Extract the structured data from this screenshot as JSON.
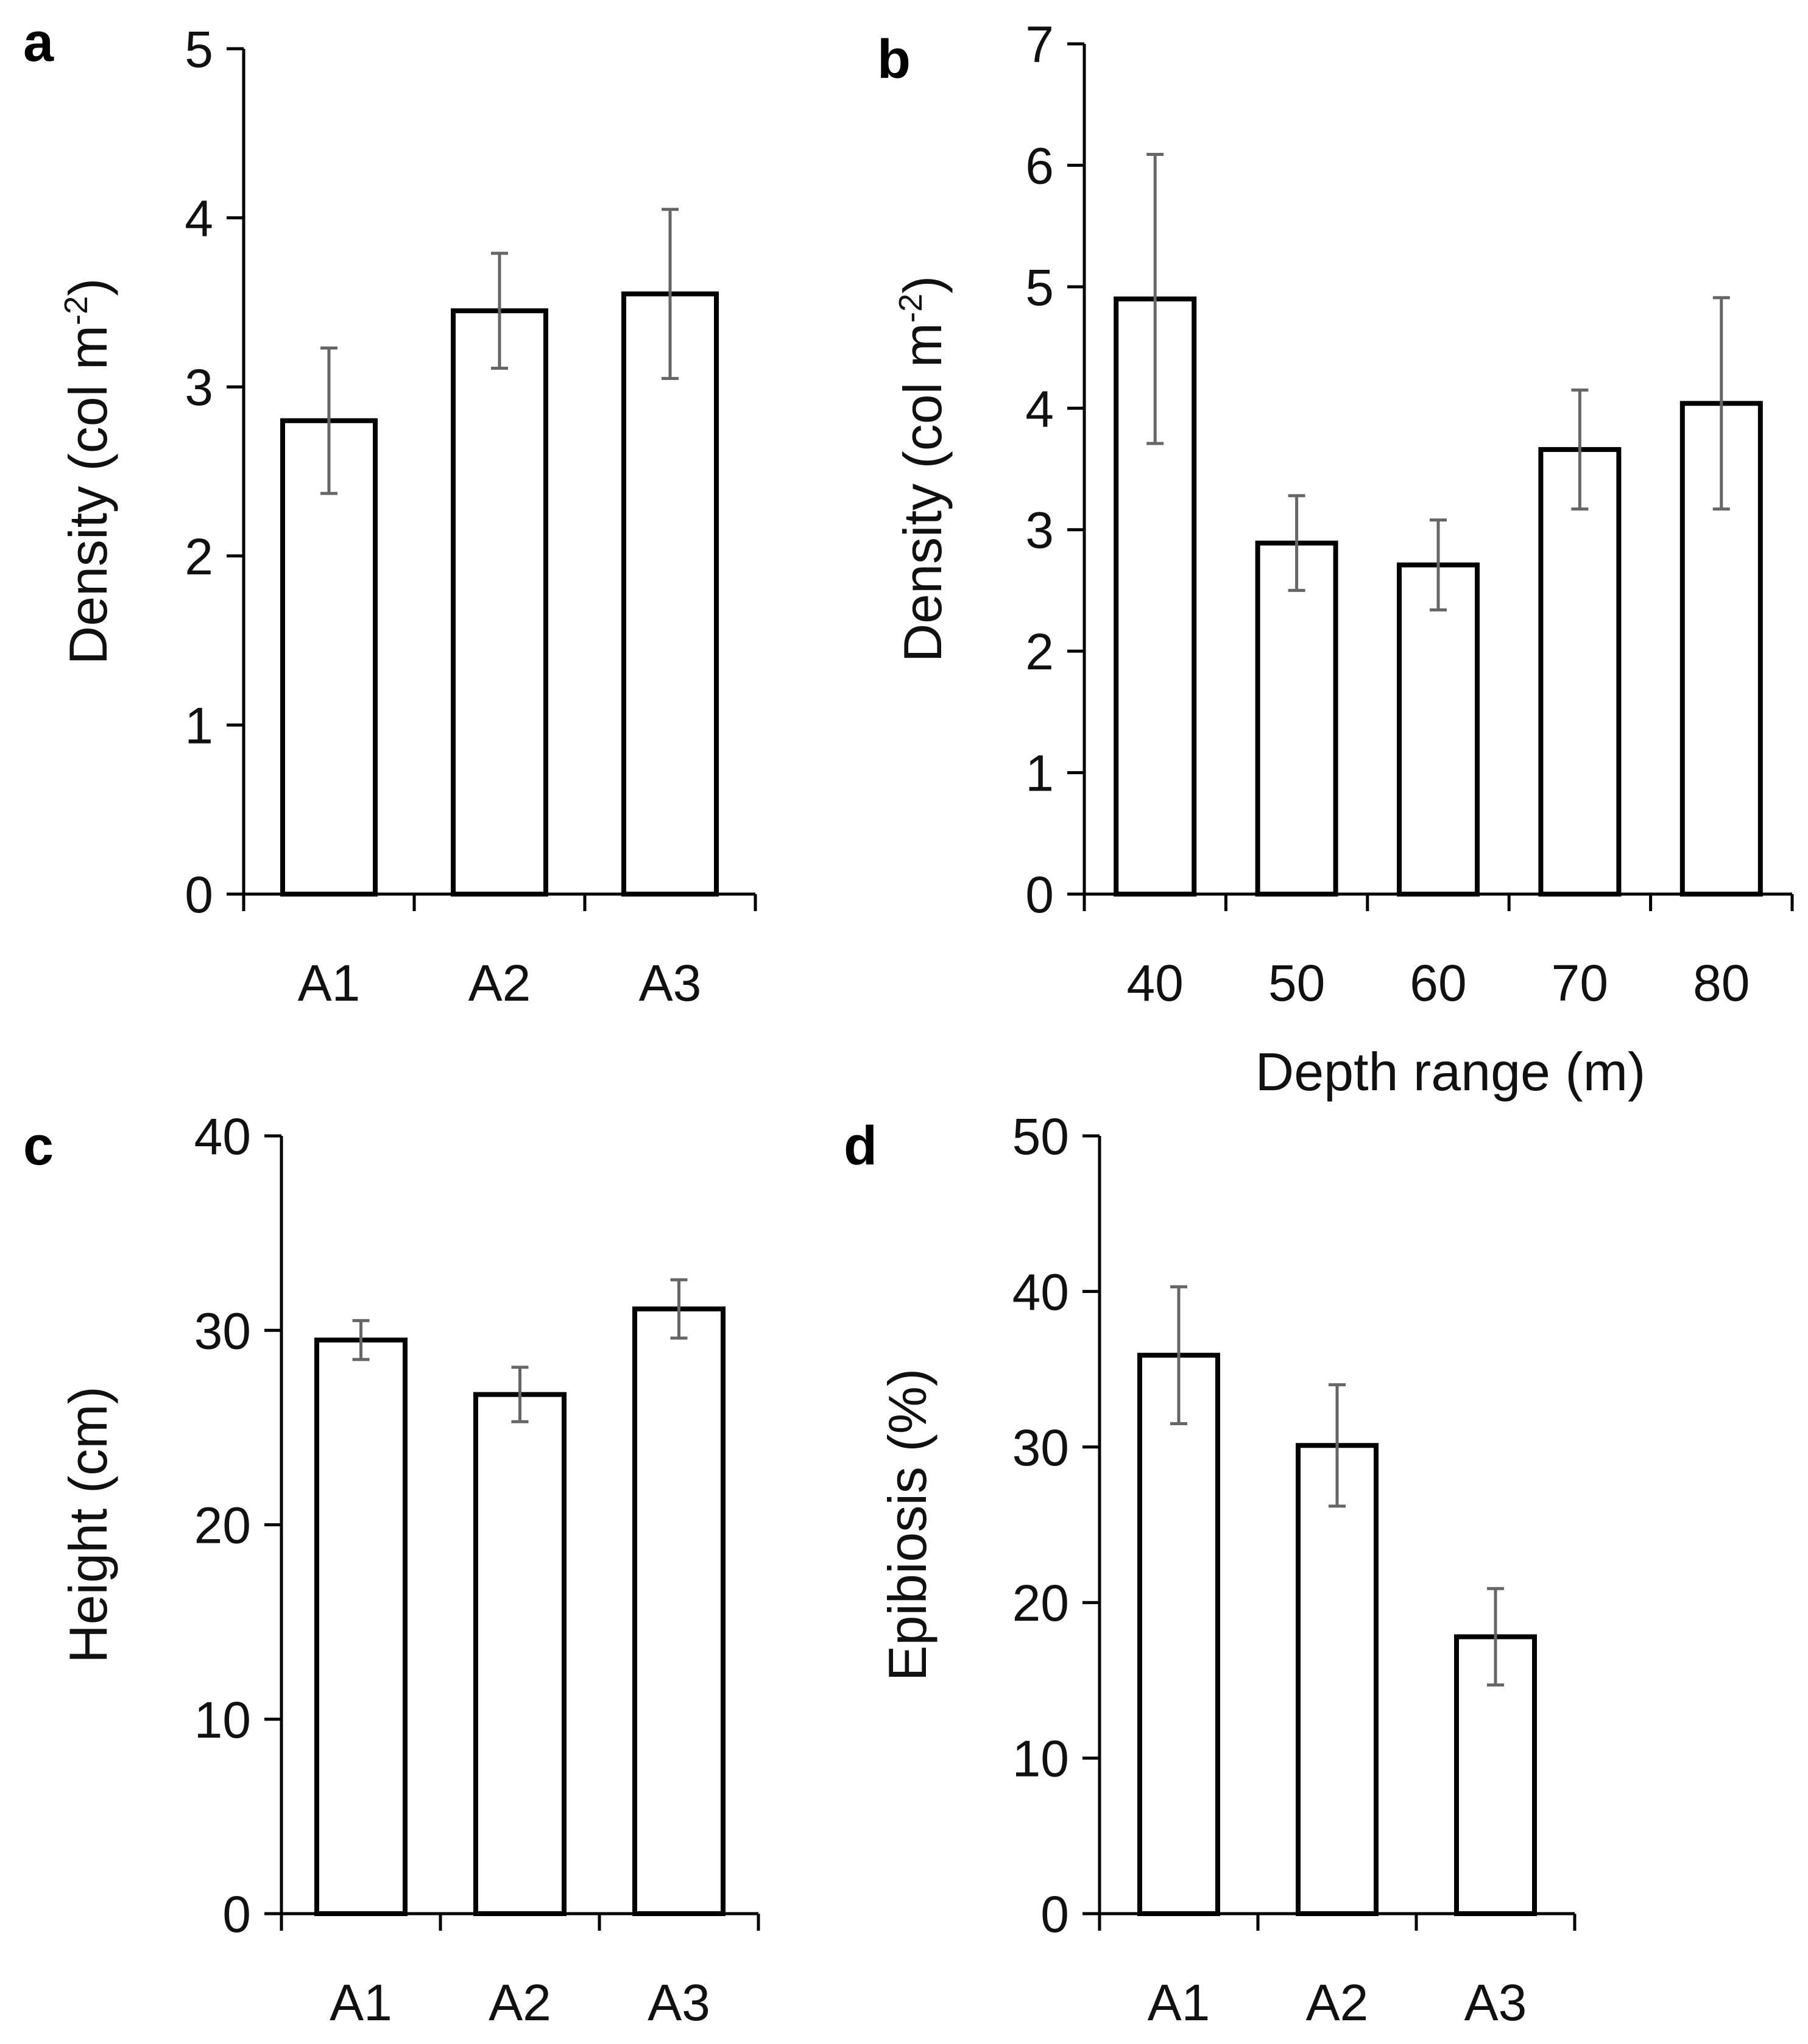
{
  "chart_data": [
    {
      "id": "a",
      "letter": "a",
      "type": "bar",
      "categories": [
        "A1",
        "A2",
        "A3"
      ],
      "values": [
        2.8,
        3.45,
        3.55
      ],
      "errors": [
        0.43,
        0.34,
        0.5
      ],
      "ylim": [
        0,
        5
      ],
      "yticks": [
        0,
        1,
        2,
        3,
        4,
        5
      ],
      "ylabel": "Density (col m",
      "ylabel_sup": "-2",
      "ylabel_end": ")",
      "xlabel": ""
    },
    {
      "id": "b",
      "letter": "b",
      "type": "bar",
      "categories": [
        "40",
        "50",
        "60",
        "70",
        "80"
      ],
      "values": [
        4.9,
        2.89,
        2.71,
        3.66,
        4.04
      ],
      "errors": [
        1.19,
        0.39,
        0.37,
        0.49,
        0.87
      ],
      "ylim": [
        0,
        7
      ],
      "yticks": [
        0,
        1,
        2,
        3,
        4,
        5,
        6,
        7
      ],
      "ylabel": "Density (col m",
      "ylabel_sup": "-2",
      "ylabel_end": ")",
      "xlabel": "Depth range (m)"
    },
    {
      "id": "c",
      "letter": "c",
      "type": "bar",
      "categories": [
        "A1",
        "A2",
        "A3"
      ],
      "values": [
        29.5,
        26.7,
        31.1
      ],
      "errors": [
        1.0,
        1.4,
        1.5
      ],
      "ylim": [
        0,
        40
      ],
      "yticks": [
        0,
        10,
        20,
        30,
        40
      ],
      "ylabel": "Height (cm)",
      "ylabel_sup": "",
      "ylabel_end": "",
      "xlabel": ""
    },
    {
      "id": "d",
      "letter": "d",
      "type": "bar",
      "categories": [
        "A1",
        "A2",
        "A3"
      ],
      "values": [
        35.9,
        30.1,
        17.8
      ],
      "errors": [
        4.4,
        3.9,
        3.1
      ],
      "ylim": [
        0,
        50
      ],
      "yticks": [
        0,
        10,
        20,
        30,
        40,
        50
      ],
      "ylabel": "Epibiosis (%)",
      "ylabel_sup": "",
      "ylabel_end": "",
      "xlabel": ""
    }
  ]
}
